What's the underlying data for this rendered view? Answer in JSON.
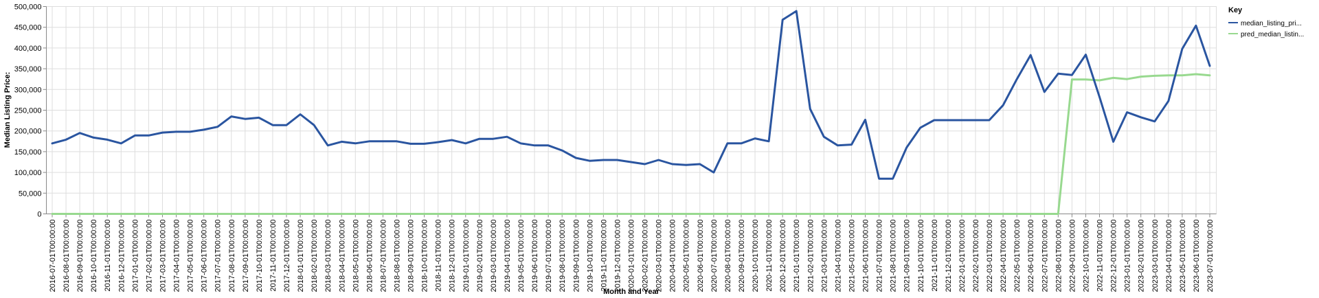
{
  "chart_data": {
    "type": "line",
    "xlabel": "Month and Year",
    "ylabel": "Median Listing Price:",
    "ylim": [
      0,
      500000
    ],
    "y_ticks": [
      "0",
      "50,000",
      "100,000",
      "150,000",
      "200,000",
      "250,000",
      "300,000",
      "350,000",
      "400,000",
      "450,000",
      "500,000"
    ],
    "grid": true,
    "legend_position": "top-right",
    "legend_title": "Key",
    "x": [
      "2016-07-01T00:00:00",
      "2016-08-01T00:00:00",
      "2016-09-01T00:00:00",
      "2016-10-01T00:00:00",
      "2016-11-01T00:00:00",
      "2016-12-01T00:00:00",
      "2017-01-01T00:00:00",
      "2017-02-01T00:00:00",
      "2017-03-01T00:00:00",
      "2017-04-01T00:00:00",
      "2017-05-01T00:00:00",
      "2017-06-01T00:00:00",
      "2017-07-01T00:00:00",
      "2017-08-01T00:00:00",
      "2017-09-01T00:00:00",
      "2017-10-01T00:00:00",
      "2017-11-01T00:00:00",
      "2017-12-01T00:00:00",
      "2018-01-01T00:00:00",
      "2018-02-01T00:00:00",
      "2018-03-01T00:00:00",
      "2018-04-01T00:00:00",
      "2018-05-01T00:00:00",
      "2018-06-01T00:00:00",
      "2018-07-01T00:00:00",
      "2018-08-01T00:00:00",
      "2018-09-01T00:00:00",
      "2018-10-01T00:00:00",
      "2018-11-01T00:00:00",
      "2018-12-01T00:00:00",
      "2019-01-01T00:00:00",
      "2019-02-01T00:00:00",
      "2019-03-01T00:00:00",
      "2019-04-01T00:00:00",
      "2019-05-01T00:00:00",
      "2019-06-01T00:00:00",
      "2019-07-01T00:00:00",
      "2019-08-01T00:00:00",
      "2019-09-01T00:00:00",
      "2019-10-01T00:00:00",
      "2019-11-01T00:00:00",
      "2019-12-01T00:00:00",
      "2020-01-01T00:00:00",
      "2020-02-01T00:00:00",
      "2020-03-01T00:00:00",
      "2020-04-01T00:00:00",
      "2020-05-01T00:00:00",
      "2020-06-01T00:00:00",
      "2020-07-01T00:00:00",
      "2020-08-01T00:00:00",
      "2020-09-01T00:00:00",
      "2020-10-01T00:00:00",
      "2020-11-01T00:00:00",
      "2020-12-01T00:00:00",
      "2021-01-01T00:00:00",
      "2021-02-01T00:00:00",
      "2021-03-01T00:00:00",
      "2021-04-01T00:00:00",
      "2021-05-01T00:00:00",
      "2021-06-01T00:00:00",
      "2021-07-01T00:00:00",
      "2021-08-01T00:00:00",
      "2021-09-01T00:00:00",
      "2021-10-01T00:00:00",
      "2021-11-01T00:00:00",
      "2021-12-01T00:00:00",
      "2022-01-01T00:00:00",
      "2022-02-01T00:00:00",
      "2022-03-01T00:00:00",
      "2022-04-01T00:00:00",
      "2022-05-01T00:00:00",
      "2022-06-01T00:00:00",
      "2022-07-01T00:00:00",
      "2022-08-01T00:00:00",
      "2022-09-01T00:00:00",
      "2022-10-01T00:00:00",
      "2022-11-01T00:00:00",
      "2022-12-01T00:00:00",
      "2023-01-01T00:00:00",
      "2023-02-01T00:00:00",
      "2023-03-01T00:00:00",
      "2023-04-01T00:00:00",
      "2023-05-01T00:00:00",
      "2023-06-01T00:00:00",
      "2023-07-01T00:00:00"
    ],
    "series": [
      {
        "name": "median_listing_pri...",
        "color": "#2a55a0",
        "values": [
          170000,
          179000,
          195000,
          184000,
          179000,
          170000,
          189000,
          189000,
          196000,
          198000,
          198000,
          203000,
          210000,
          235000,
          229000,
          232000,
          214000,
          214000,
          240000,
          214000,
          165000,
          174000,
          170000,
          175000,
          175000,
          175000,
          169000,
          169000,
          173000,
          178000,
          170000,
          181000,
          181000,
          186000,
          170000,
          165000,
          165000,
          153000,
          135000,
          128000,
          130000,
          130000,
          125000,
          120000,
          130000,
          120000,
          118000,
          120000,
          100000,
          170000,
          170000,
          182000,
          175000,
          468000,
          489000,
          253000,
          186000,
          165000,
          167000,
          227000,
          85000,
          85000,
          160000,
          208000,
          226000,
          226000,
          226000,
          226000,
          226000,
          262000,
          325000,
          383000,
          294000,
          338000,
          335000,
          384000,
          282000,
          174000,
          245000,
          233000,
          223000,
          272000,
          398000,
          454000,
          357000
        ]
      },
      {
        "name": "pred_median_listin...",
        "color": "#98d98f",
        "values": [
          0,
          0,
          0,
          0,
          0,
          0,
          0,
          0,
          0,
          0,
          0,
          0,
          0,
          0,
          0,
          0,
          0,
          0,
          0,
          0,
          0,
          0,
          0,
          0,
          0,
          0,
          0,
          0,
          0,
          0,
          0,
          0,
          0,
          0,
          0,
          0,
          0,
          0,
          0,
          0,
          0,
          0,
          0,
          0,
          0,
          0,
          0,
          0,
          0,
          0,
          0,
          0,
          0,
          0,
          0,
          0,
          0,
          0,
          0,
          0,
          0,
          0,
          0,
          0,
          0,
          0,
          0,
          0,
          0,
          0,
          0,
          0,
          0,
          0,
          324000,
          324000,
          322000,
          328000,
          325000,
          331000,
          333000,
          334000,
          334000,
          337000,
          334000
        ]
      }
    ]
  }
}
